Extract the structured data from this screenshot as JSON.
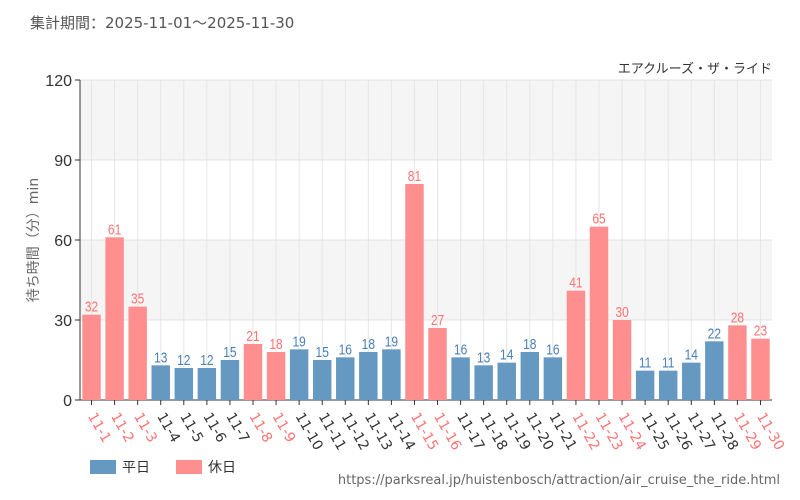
{
  "header": {
    "period": "集計期間：2025-11-01～2025-11-30"
  },
  "legend": {
    "weekday": "平日",
    "holiday": "休日"
  },
  "source_url": "https://parksreal.jp/huistenbosch/attraction/air_cruise_the_ride.html",
  "colors": {
    "weekday": "#6699c2",
    "holiday": "#ff8f8f",
    "weekday_text": "#4a80b8",
    "holiday_text": "#ff7373"
  },
  "chart_data": {
    "type": "bar",
    "title": "エアクルーズ・ザ・ライド",
    "ylabel": "待ち時間（分）min",
    "xlabel": "",
    "ylim": [
      0,
      120
    ],
    "yticks": [
      "0",
      "30",
      "60",
      "90",
      "120"
    ],
    "categories": [
      "11-1",
      "11-2",
      "11-3",
      "11-4",
      "11-5",
      "11-6",
      "11-7",
      "11-8",
      "11-9",
      "11-10",
      "11-11",
      "11-12",
      "11-13",
      "11-14",
      "11-15",
      "11-16",
      "11-17",
      "11-18",
      "11-19",
      "11-20",
      "11-21",
      "11-22",
      "11-23",
      "11-24",
      "11-25",
      "11-26",
      "11-27",
      "11-28",
      "11-29",
      "11-30"
    ],
    "values": [
      32,
      61,
      35,
      13,
      12,
      12,
      15,
      21,
      18,
      19,
      15,
      16,
      18,
      19,
      81,
      27,
      16,
      13,
      14,
      18,
      16,
      41,
      65,
      30,
      11,
      11,
      14,
      22,
      28,
      23
    ],
    "holiday": [
      true,
      true,
      true,
      false,
      false,
      false,
      false,
      true,
      true,
      false,
      false,
      false,
      false,
      false,
      true,
      true,
      false,
      false,
      false,
      false,
      false,
      true,
      true,
      true,
      false,
      false,
      false,
      false,
      true,
      true
    ],
    "legend_position": "bottom-left"
  }
}
